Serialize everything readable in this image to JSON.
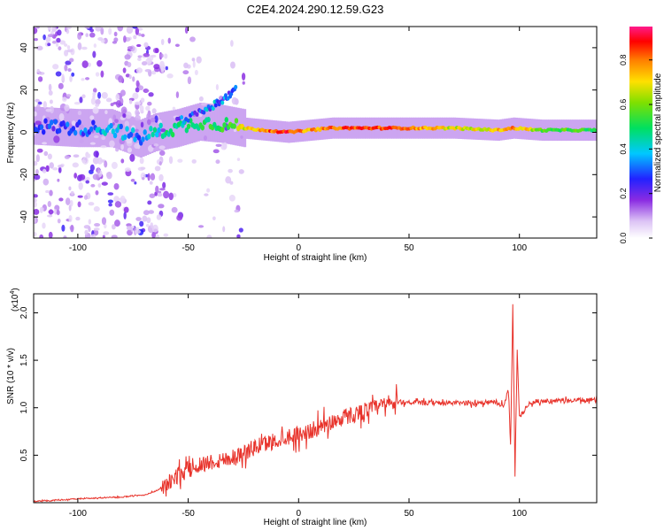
{
  "title": "C2E4.2024.290.12.59.G23",
  "colors": {
    "background": "#ffffff",
    "line": "#e8332b",
    "spectrogram_background": "#ffffff"
  },
  "chart_data": [
    {
      "type": "heatmap",
      "xlabel": "Height of straight line (km)",
      "ylabel": "Frequency (Hz)",
      "xlim": [
        -120,
        135
      ],
      "ylim": [
        -50,
        50
      ],
      "xticks": [
        -100,
        -50,
        0,
        50,
        100
      ],
      "yticks": [
        -40,
        -20,
        0,
        20,
        40
      ],
      "colorbar": {
        "label": "Normalized spectral amplitude",
        "range": [
          0,
          0.95
        ],
        "ticks": [
          0.0,
          0.2,
          0.4,
          0.6,
          0.8
        ],
        "tick_labels": [
          "0.0",
          "0.2",
          "0.4",
          "0.6",
          "0.8"
        ],
        "colormap": "rainbow (white-purple-blue-cyan-green-yellow-red)"
      },
      "ridge": [
        {
          "x": -118,
          "f": 3,
          "amp": 0.25
        },
        {
          "x": -100,
          "f": 2,
          "amp": 0.3
        },
        {
          "x": -85,
          "f": 2,
          "amp": 0.4
        },
        {
          "x": -72,
          "f": -3,
          "amp": 0.35
        },
        {
          "x": -65,
          "f": 0,
          "amp": 0.45
        },
        {
          "x": -55,
          "f": 2,
          "amp": 0.5
        },
        {
          "x": -45,
          "f": 5,
          "amp": 0.5
        },
        {
          "x": -35,
          "f": 4,
          "amp": 0.55
        },
        {
          "x": -25,
          "f": 2,
          "amp": 0.7
        },
        {
          "x": -15,
          "f": 1,
          "amp": 0.85
        },
        {
          "x": -5,
          "f": 0,
          "amp": 0.9
        },
        {
          "x": 5,
          "f": 1,
          "amp": 0.8
        },
        {
          "x": 15,
          "f": 2,
          "amp": 0.85
        },
        {
          "x": 30,
          "f": 2,
          "amp": 0.9
        },
        {
          "x": 50,
          "f": 2,
          "amp": 0.85
        },
        {
          "x": 70,
          "f": 2,
          "amp": 0.7
        },
        {
          "x": 90,
          "f": 1,
          "amp": 0.75
        },
        {
          "x": 97,
          "f": 2,
          "amp": 0.85
        },
        {
          "x": 110,
          "f": 1,
          "amp": 0.6
        },
        {
          "x": 135,
          "f": 1,
          "amp": 0.55
        }
      ],
      "upper_branch": [
        {
          "x": -55,
          "f": 5
        },
        {
          "x": -45,
          "f": 9
        },
        {
          "x": -38,
          "f": 13
        },
        {
          "x": -33,
          "f": 16
        },
        {
          "x": -28,
          "f": 22
        }
      ]
    },
    {
      "type": "line",
      "xlabel": "Height of straight line (km)",
      "ylabel": "SNR (10 * v/v)",
      "y_multiplier_label": "(x10",
      "y_multiplier_exponent": "4",
      "xlim": [
        -120,
        135
      ],
      "ylim": [
        0,
        22000
      ],
      "xticks": [
        -100,
        -50,
        0,
        50,
        100
      ],
      "yticks": [
        5000,
        10000,
        15000,
        20000
      ],
      "ytick_labels": [
        "0.5",
        "1.0",
        "1.5",
        "2.0"
      ],
      "series": [
        {
          "color": "#e8332b",
          "points": [
            [
              -120,
              150
            ],
            [
              -110,
              250
            ],
            [
              -100,
              400
            ],
            [
              -90,
              500
            ],
            [
              -80,
              600
            ],
            [
              -70,
              800
            ],
            [
              -65,
              1200
            ],
            [
              -60,
              1800
            ],
            [
              -55,
              2800
            ],
            [
              -50,
              3500
            ],
            [
              -45,
              4000
            ],
            [
              -40,
              4300
            ],
            [
              -35,
              4500
            ],
            [
              -30,
              4800
            ],
            [
              -25,
              5200
            ],
            [
              -20,
              5800
            ],
            [
              -15,
              6200
            ],
            [
              -10,
              6600
            ],
            [
              -5,
              7000
            ],
            [
              0,
              7200
            ],
            [
              5,
              7500
            ],
            [
              10,
              8000
            ],
            [
              15,
              8500
            ],
            [
              20,
              9000
            ],
            [
              25,
              9300
            ],
            [
              30,
              9700
            ],
            [
              35,
              10000
            ],
            [
              40,
              10300
            ],
            [
              45,
              10600
            ],
            [
              50,
              10600
            ],
            [
              55,
              10500
            ],
            [
              60,
              10500
            ],
            [
              65,
              10500
            ],
            [
              70,
              10500
            ],
            [
              75,
              10500
            ],
            [
              80,
              10500
            ],
            [
              85,
              10600
            ],
            [
              90,
              10500
            ],
            [
              93,
              10200
            ],
            [
              95,
              12000
            ],
            [
              96,
              6000
            ],
            [
              97,
              21000
            ],
            [
              98,
              3000
            ],
            [
              99,
              16000
            ],
            [
              100,
              9000
            ],
            [
              105,
              10600
            ],
            [
              110,
              10700
            ],
            [
              115,
              10700
            ],
            [
              120,
              10700
            ],
            [
              125,
              10800
            ],
            [
              130,
              10800
            ],
            [
              135,
              10800
            ]
          ]
        }
      ]
    }
  ]
}
